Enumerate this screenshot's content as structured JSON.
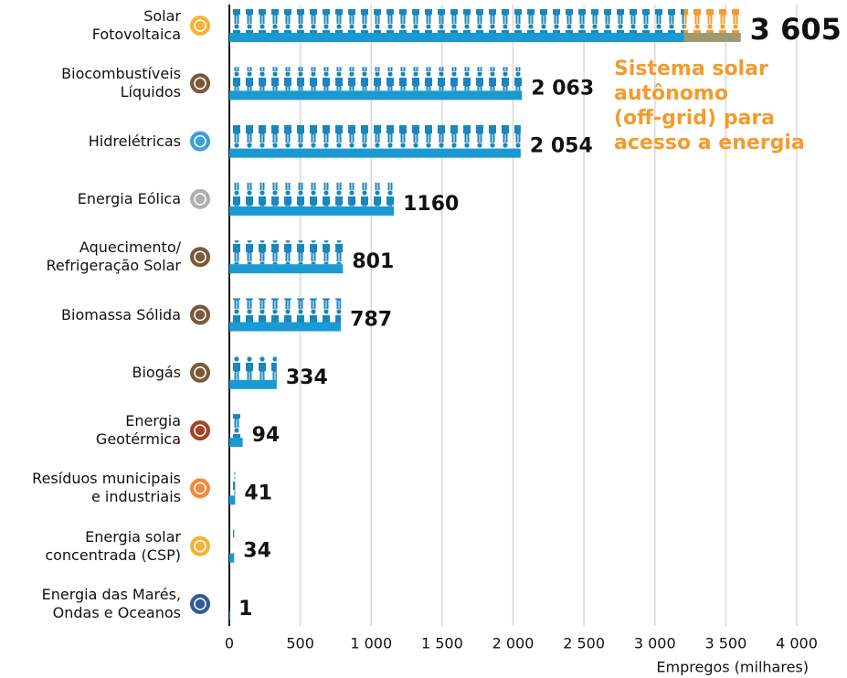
{
  "chart_data": {
    "type": "pictograph-bar",
    "categories": [
      "Solar\nFotovoltaica",
      "Biocombustíveis\nLíquidos",
      "Hidrelétricas",
      "Energia Eólica",
      "Aquecimento/\nRefrigeração Solar",
      "Biomassa Sólida",
      "Biogás",
      "Energia\nGeotérmica",
      "Resíduos municipais\ne industriais",
      "Energia solar\nconcentrada (CSP)",
      "Energia das Marés,\nOndas e Oceanos"
    ],
    "values": [
      3605,
      2063,
      2054,
      1160,
      801,
      787,
      334,
      94,
      41,
      34,
      1
    ],
    "value_labels": [
      "3 605",
      "2 063",
      "2 054",
      "1160",
      "801",
      "787",
      "334",
      "94",
      "41",
      "34",
      "1"
    ],
    "color": "#1a9ad2",
    "offgrid": {
      "category": 0,
      "value": 400,
      "label": "Sistema solar\nautônomo\n(off-grid) para\nacesso a energia",
      "color": "#f39b2e"
    },
    "xlim": [
      0,
      4000
    ],
    "xticks": [
      0,
      500,
      {
        "value": 1000,
        "label": "1 000"
      },
      {
        "value": 1500,
        "label": "1 500"
      },
      {
        "value": 2000,
        "label": "2 000"
      },
      {
        "value": 2500,
        "label": "2 500"
      },
      {
        "value": 3000,
        "label": "3 000"
      },
      {
        "value": 3500,
        "label": "3 500"
      },
      {
        "value": 4000,
        "label": "4 000"
      }
    ],
    "xlabel": "Empregos (milhares)",
    "grid": true
  }
}
